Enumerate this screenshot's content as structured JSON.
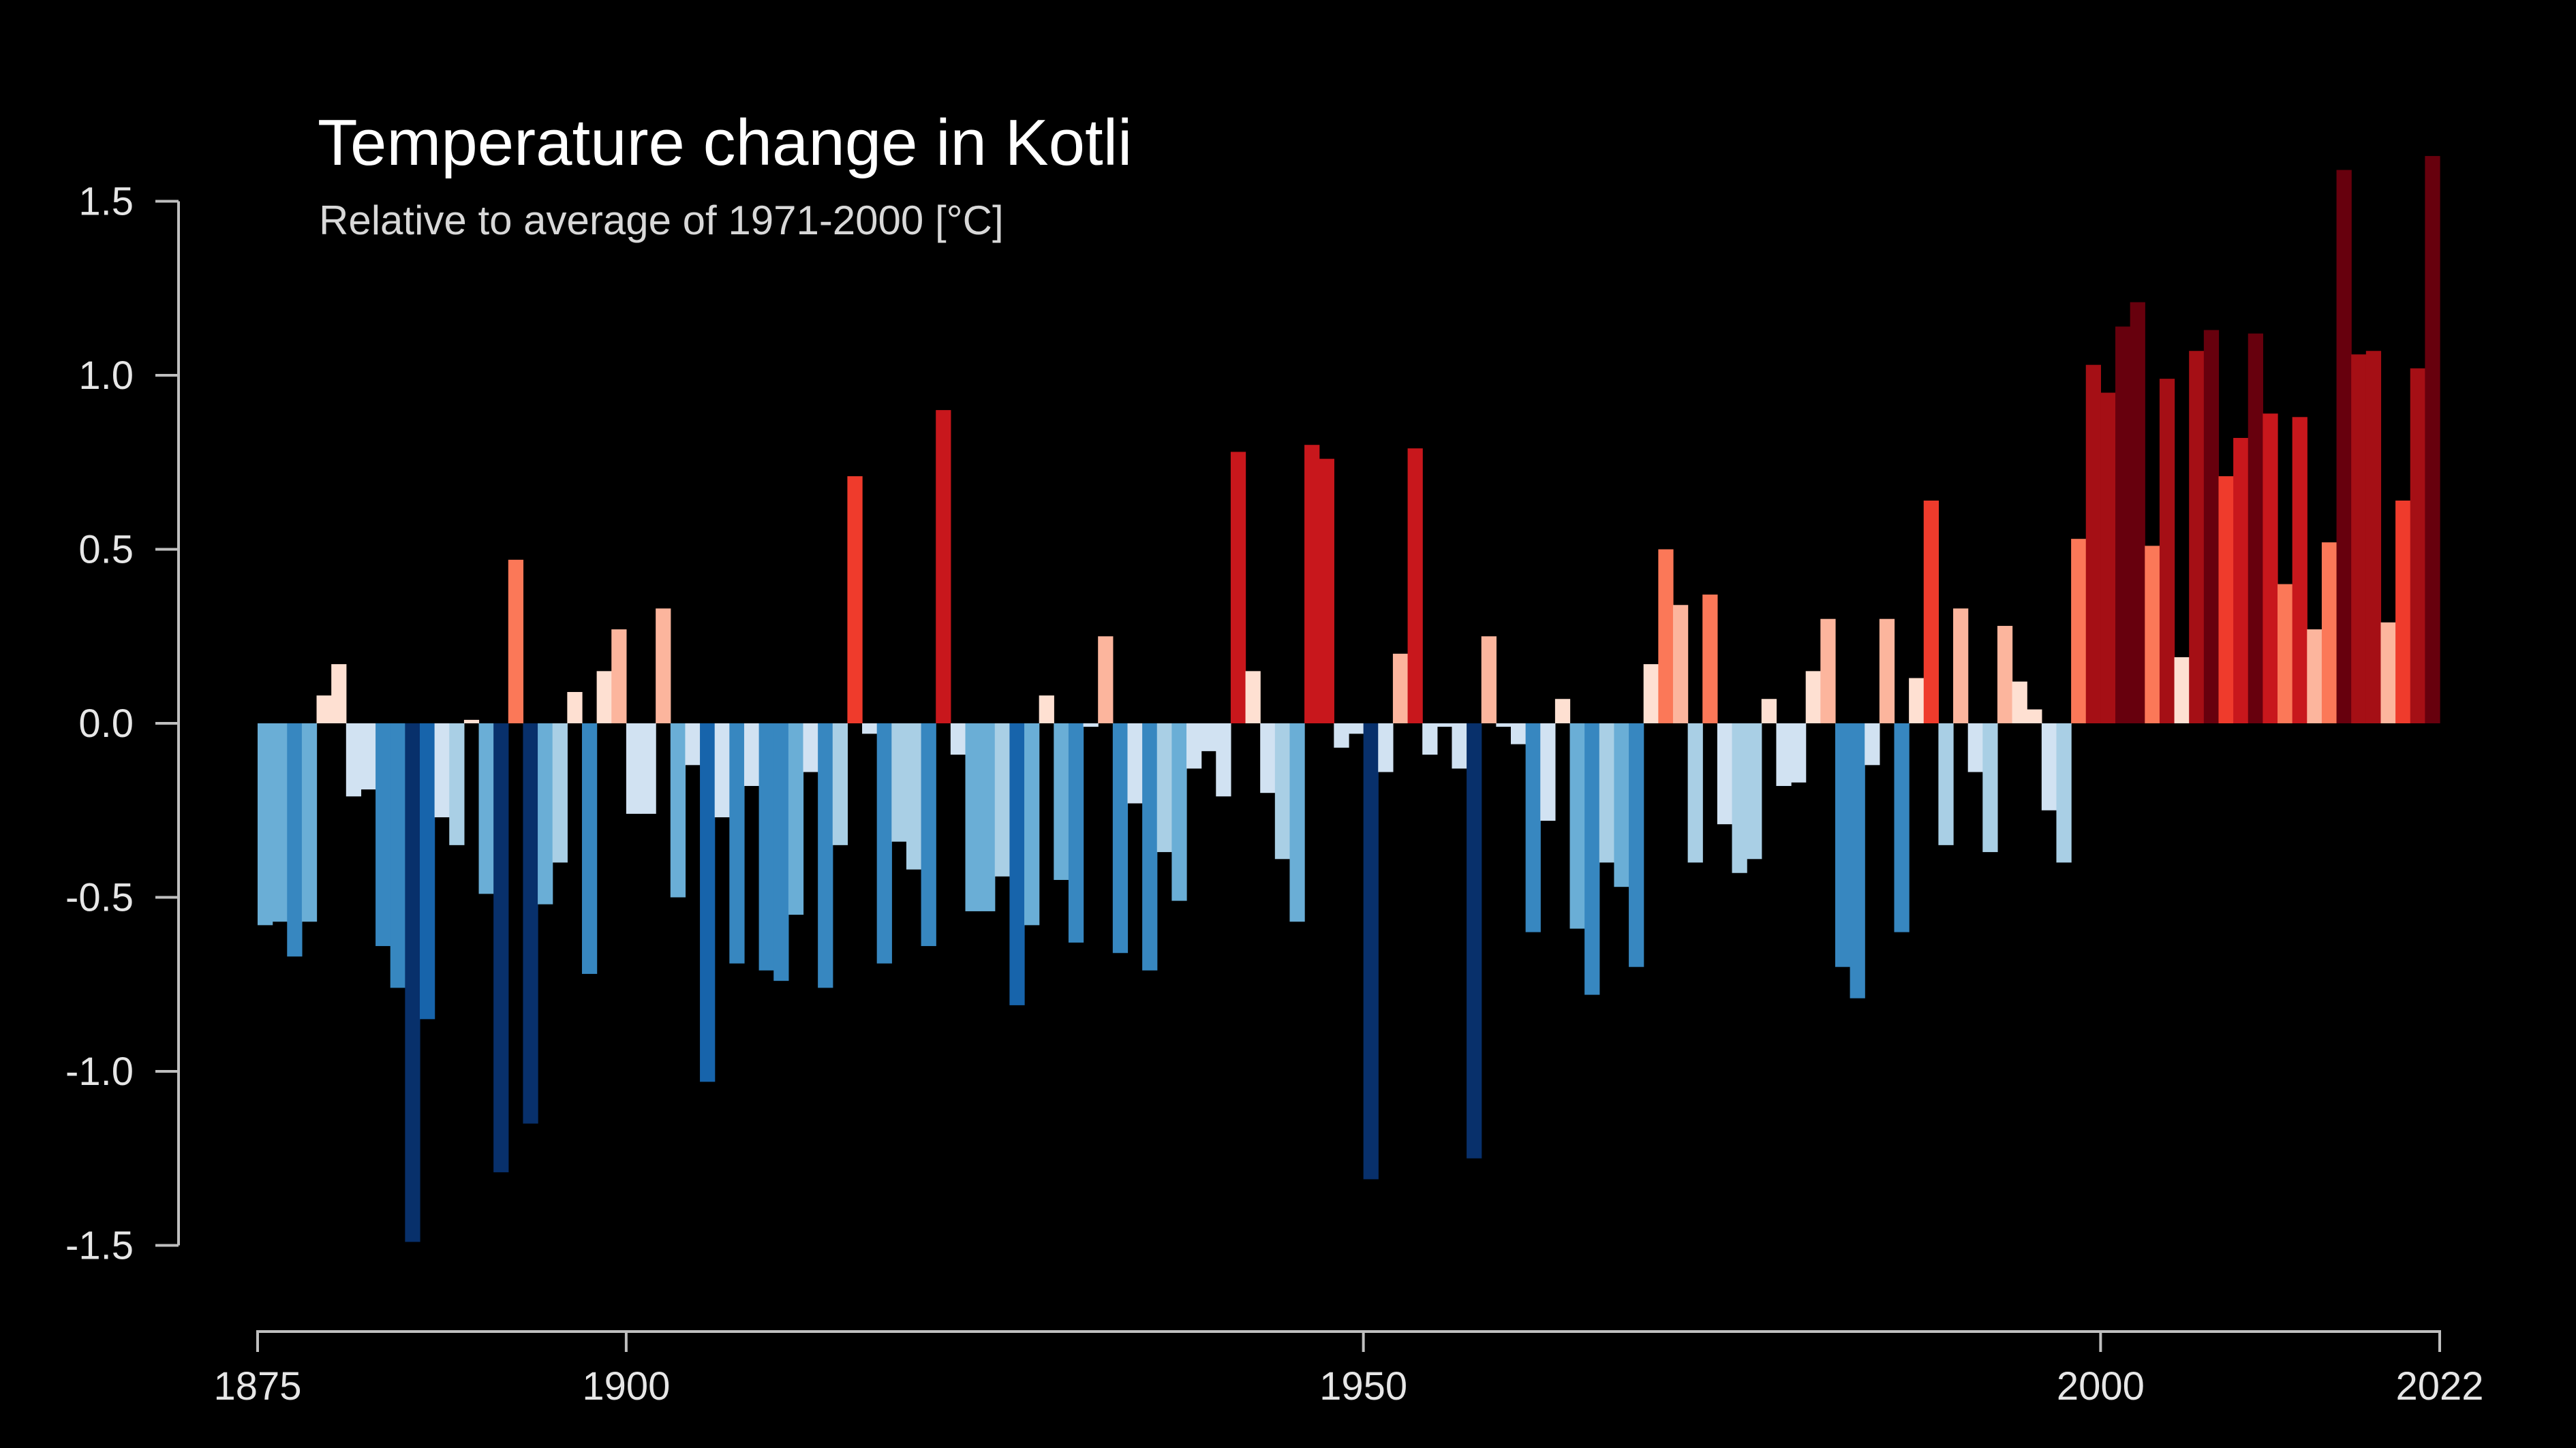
{
  "chart_data": {
    "type": "bar",
    "title": "Temperature change in Kotli",
    "subtitle": "Relative to average of 1971-2000  [°C]",
    "xlabel": "",
    "ylabel": "",
    "x_start": 1875,
    "x_end": 2022,
    "ylim": [
      -1.5,
      1.5
    ],
    "grid": false,
    "y_ticks": [
      1.5,
      1.0,
      0.5,
      0.0,
      -0.5,
      -1.0,
      -1.5
    ],
    "y_tick_labels": [
      "1.5",
      "1.0",
      "0.5",
      "0.0",
      "-0.5",
      "-1.0",
      "-1.5"
    ],
    "x_ticks": [
      1875,
      1900,
      1950,
      2000,
      2022
    ],
    "x_tick_labels": [
      "1875",
      "1900",
      "1950",
      "2000",
      "2022"
    ],
    "colors": {
      "background": "#000000",
      "axis": "#bfbfbf",
      "cold_scale": [
        "#d1e2f2",
        "#a9cfe5",
        "#6aaed6",
        "#3787c0",
        "#1764ab",
        "#08306b"
      ],
      "warm_scale": [
        "#fee0d2",
        "#fcb59d",
        "#fb7858",
        "#ef3b2c",
        "#c8171c",
        "#a50f15",
        "#67000d"
      ]
    },
    "x": [
      1875,
      1876,
      1877,
      1878,
      1879,
      1880,
      1881,
      1882,
      1883,
      1884,
      1885,
      1886,
      1887,
      1888,
      1889,
      1890,
      1891,
      1892,
      1893,
      1894,
      1895,
      1896,
      1897,
      1898,
      1899,
      1900,
      1901,
      1902,
      1903,
      1904,
      1905,
      1906,
      1907,
      1908,
      1909,
      1910,
      1911,
      1912,
      1913,
      1914,
      1915,
      1916,
      1917,
      1918,
      1919,
      1920,
      1921,
      1922,
      1923,
      1924,
      1925,
      1926,
      1927,
      1928,
      1929,
      1930,
      1931,
      1932,
      1933,
      1934,
      1935,
      1936,
      1937,
      1938,
      1939,
      1940,
      1941,
      1942,
      1943,
      1944,
      1945,
      1946,
      1947,
      1948,
      1949,
      1950,
      1951,
      1952,
      1953,
      1954,
      1955,
      1956,
      1957,
      1958,
      1959,
      1960,
      1961,
      1962,
      1963,
      1964,
      1965,
      1966,
      1967,
      1968,
      1969,
      1970,
      1971,
      1972,
      1973,
      1974,
      1975,
      1976,
      1977,
      1978,
      1979,
      1980,
      1981,
      1982,
      1983,
      1984,
      1985,
      1986,
      1987,
      1988,
      1989,
      1990,
      1991,
      1992,
      1993,
      1994,
      1995,
      1996,
      1997,
      1998,
      1999,
      2000,
      2001,
      2002,
      2003,
      2004,
      2005,
      2006,
      2007,
      2008,
      2009,
      2010,
      2011,
      2012,
      2013,
      2014,
      2015,
      2016,
      2017,
      2018,
      2019,
      2020,
      2021,
      2022
    ],
    "values": [
      -0.58,
      -0.57,
      -0.67,
      -0.57,
      0.08,
      0.17,
      -0.21,
      -0.19,
      -0.64,
      -0.76,
      -1.49,
      -0.85,
      -0.27,
      -0.35,
      0.01,
      -0.49,
      -1.29,
      0.47,
      -1.15,
      -0.52,
      -0.4,
      0.09,
      -0.72,
      0.15,
      0.27,
      -0.26,
      -0.26,
      0.33,
      -0.5,
      -0.12,
      -1.03,
      -0.27,
      -0.69,
      -0.18,
      -0.71,
      -0.74,
      -0.55,
      -0.14,
      -0.76,
      -0.35,
      0.71,
      -0.03,
      -0.69,
      -0.34,
      -0.42,
      -0.64,
      0.9,
      -0.09,
      -0.54,
      -0.54,
      -0.44,
      -0.81,
      -0.58,
      0.08,
      -0.45,
      -0.63,
      -0.01,
      0.25,
      -0.66,
      -0.23,
      -0.71,
      -0.37,
      -0.51,
      -0.13,
      -0.08,
      -0.21,
      0.78,
      0.15,
      -0.2,
      -0.39,
      -0.57,
      0.8,
      0.76,
      -0.07,
      -0.03,
      -1.31,
      -0.14,
      0.2,
      0.79,
      -0.09,
      -0.01,
      -0.13,
      -1.25,
      0.25,
      -0.01,
      -0.06,
      -0.6,
      -0.28,
      0.07,
      -0.59,
      -0.78,
      -0.4,
      -0.47,
      -0.7,
      0.17,
      0.5,
      0.34,
      -0.4,
      0.37,
      -0.29,
      -0.43,
      -0.39,
      0.07,
      -0.18,
      -0.17,
      0.15,
      0.3,
      -0.7,
      -0.79,
      -0.12,
      0.3,
      -0.6,
      0.13,
      0.64,
      -0.35,
      0.33,
      -0.14,
      -0.37,
      0.28,
      0.12,
      0.04,
      -0.25,
      -0.4,
      0.53,
      1.03,
      0.95,
      1.14,
      1.21,
      0.51,
      0.99,
      0.19,
      1.07,
      1.13,
      0.71,
      0.82,
      1.12,
      0.89,
      0.4,
      0.88,
      0.27,
      0.52,
      1.59,
      1.06,
      1.07,
      0.29,
      0.64,
      1.02,
      1.63
    ]
  }
}
